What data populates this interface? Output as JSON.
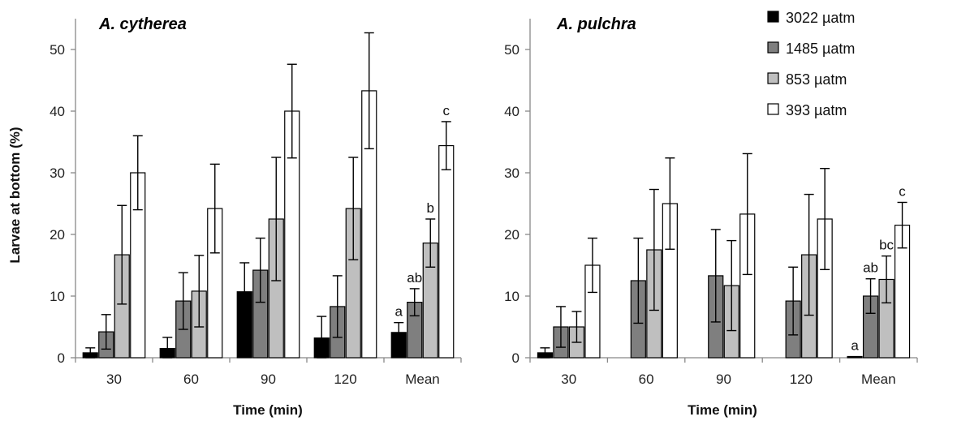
{
  "chart_data": [
    {
      "type": "bar",
      "title": "A. cytherea",
      "xlabel": "Time (min)",
      "ylabel": "Larvae at bottom (%)",
      "ylim": [
        0,
        55
      ],
      "yticks": [
        0,
        10,
        20,
        30,
        40,
        50
      ],
      "categories": [
        "30",
        "60",
        "90",
        "120",
        "Mean"
      ],
      "grid": false,
      "series": [
        {
          "name": "3022 µatm",
          "values": [
            0.8,
            1.5,
            10.7,
            3.2,
            4.1
          ],
          "errors": [
            0.8,
            1.8,
            4.7,
            3.5,
            1.6
          ]
        },
        {
          "name": "1485 µatm",
          "values": [
            4.2,
            9.2,
            14.2,
            8.3,
            9.0
          ],
          "errors": [
            2.8,
            4.6,
            5.2,
            5.0,
            2.2
          ]
        },
        {
          "name": "853 µatm",
          "values": [
            16.7,
            10.8,
            22.5,
            24.2,
            18.6
          ],
          "errors": [
            8.0,
            5.8,
            10.0,
            8.3,
            3.9
          ]
        },
        {
          "name": "393 µatm",
          "values": [
            30.0,
            24.2,
            40.0,
            43.3,
            34.4
          ],
          "errors": [
            6.0,
            7.2,
            7.6,
            9.4,
            3.9
          ]
        }
      ],
      "significance": [
        "a",
        "ab",
        "b",
        "c"
      ]
    },
    {
      "type": "bar",
      "title": "A. pulchra",
      "xlabel": "Time (min)",
      "ylabel": "",
      "ylim": [
        0,
        55
      ],
      "yticks": [
        0,
        10,
        20,
        30,
        40,
        50
      ],
      "categories": [
        "30",
        "60",
        "90",
        "120",
        "Mean"
      ],
      "grid": false,
      "series": [
        {
          "name": "3022 µatm",
          "values": [
            0.8,
            0,
            0,
            0,
            0.2
          ],
          "errors": [
            0.8,
            0,
            0,
            0,
            0
          ]
        },
        {
          "name": "1485 µatm",
          "values": [
            5.0,
            12.5,
            13.3,
            9.2,
            10.0
          ],
          "errors": [
            3.3,
            6.9,
            7.5,
            5.5,
            2.8
          ]
        },
        {
          "name": "853 µatm",
          "values": [
            5.0,
            17.5,
            11.7,
            16.7,
            12.7
          ],
          "errors": [
            2.5,
            9.8,
            7.3,
            9.8,
            3.8
          ]
        },
        {
          "name": "393 µatm",
          "values": [
            15.0,
            25.0,
            23.3,
            22.5,
            21.5
          ],
          "errors": [
            4.4,
            7.4,
            9.8,
            8.2,
            3.7
          ]
        }
      ],
      "significance": [
        "a",
        "ab",
        "bc",
        "c"
      ]
    }
  ],
  "legend": {
    "placement": "top-right",
    "items": [
      {
        "label": "3022 µatm",
        "color": "#000000"
      },
      {
        "label": "1485 µatm",
        "color": "#7f7f7f"
      },
      {
        "label": "853 µatm",
        "color": "#bfbfbf"
      },
      {
        "label": "393 µatm",
        "color": "#ffffff"
      }
    ]
  },
  "colors": {
    "axis": "#888888",
    "bar_stroke": "#000000",
    "error_bar": "#000000"
  }
}
